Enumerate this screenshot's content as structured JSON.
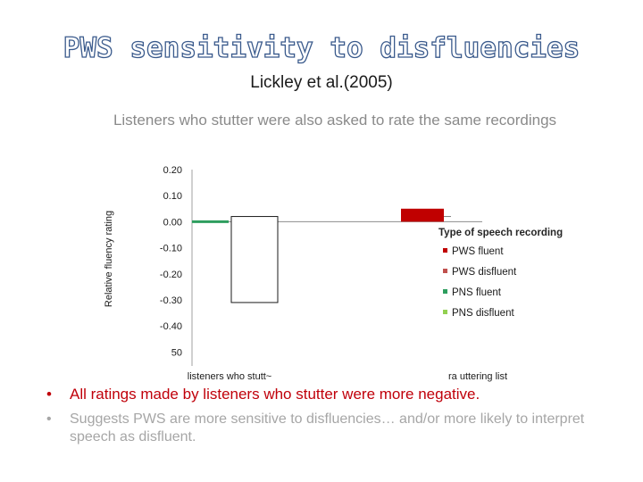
{
  "slide": {
    "title": "PWS sensitivity to disfluencies",
    "subtitle": "Lickley et al.(2005)",
    "tagline": "Listeners who stutter  were also asked to rate the same recordings"
  },
  "chart_data": {
    "type": "bar",
    "ylabel": "Relative fluency rating",
    "y_ticks": [
      "0.20",
      "0.10",
      "0.00",
      "-0.10",
      "-0.20",
      "-0.30",
      "-0.40",
      "50"
    ],
    "ylim": [
      -0.4,
      0.2
    ],
    "categories": [
      "listeners who stutt~",
      "ra               uttering list"
    ],
    "legend_title": "Type of speech recording",
    "legend_position": "right",
    "series": [
      {
        "name": "PWS  fluent",
        "color": "#c00000",
        "values": [
          null,
          0.05
        ]
      },
      {
        "name": "PWS  disfluent",
        "color": "#c0504d",
        "values": [
          null,
          null
        ]
      },
      {
        "name": "PNS fluent",
        "color": "#2e9e5e",
        "values": [
          0.0,
          null
        ]
      },
      {
        "name": "PNS disfluent",
        "color": "#92d050",
        "values": [
          null,
          null
        ]
      }
    ],
    "outlined_bar": {
      "category_index": 0,
      "top": 0.02,
      "bottom": -0.31
    }
  },
  "bullets": [
    {
      "marker": "•",
      "text": "All ratings made by listeners who stutter were more negative."
    },
    {
      "marker": "•",
      "text": "Suggests PWS are more sensitive to disfluencies… and/or more likely to interpret speech as disfluent."
    }
  ],
  "colors": {
    "title_outline": "#3a5a8c",
    "bullet_red": "#c0000a",
    "bullet_gray": "#a6a6a6"
  }
}
